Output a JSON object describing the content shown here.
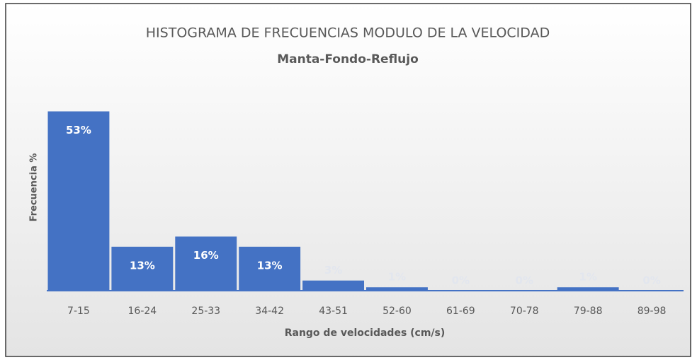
{
  "chart_data": {
    "type": "bar",
    "title": "HISTOGRAMA DE FRECUENCIAS MODULO DE LA VELOCIDAD",
    "subtitle": "Manta-Fondo-Reflujo",
    "x_label": "Rango de velocidades (cm/s)",
    "y_label": "Frecuencia %",
    "categories": [
      "7-15",
      "16-24",
      "25-33",
      "34-42",
      "43-51",
      "52-60",
      "61-69",
      "70-78",
      "79-88",
      "89-98"
    ],
    "values": [
      53,
      13,
      16,
      13,
      3,
      1,
      0,
      0,
      1,
      0
    ],
    "value_labels": [
      "53%",
      "13%",
      "16%",
      "13%",
      "3%",
      "1%",
      "0%",
      "0%",
      "1%",
      "0%"
    ],
    "color": "#4472c4",
    "ylim": [
      0,
      60
    ],
    "grid": false
  }
}
